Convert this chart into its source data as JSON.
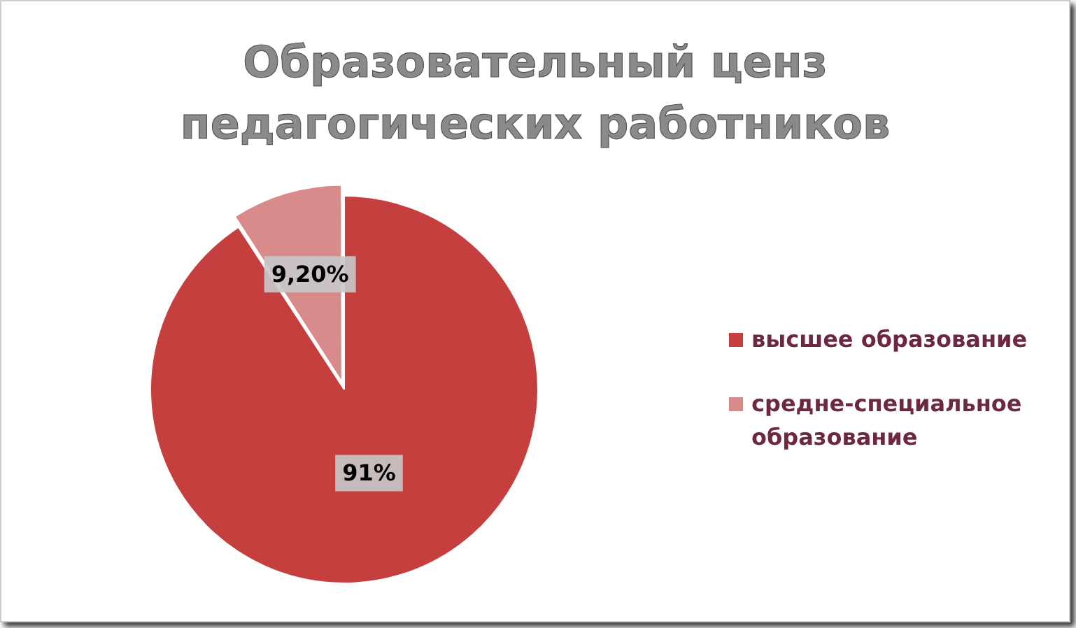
{
  "chart_data": {
    "type": "pie",
    "title": "Образовательный ценз педагогических работников",
    "categories": [
      "высшее образование",
      "средне-специальное образование"
    ],
    "values": [
      91,
      9.2
    ],
    "colors": [
      "#c43f3d",
      "#d98a8a"
    ],
    "value_labels": [
      "91%",
      "9,20%"
    ],
    "legend": "right"
  }
}
